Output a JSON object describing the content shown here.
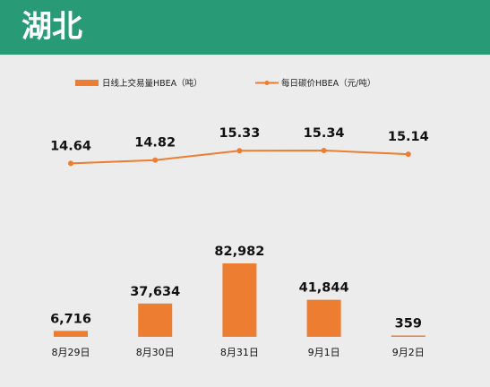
{
  "header": {
    "title": "湖北"
  },
  "chart_data": {
    "type": "bar+line",
    "categories": [
      "8月29日",
      "8月30日",
      "8月31日",
      "9月1日",
      "9月2日"
    ],
    "series": [
      {
        "name": "日线上交易量HBEA（吨）",
        "type": "bar",
        "values": [
          6716,
          37634,
          82982,
          41844,
          359
        ],
        "labels": [
          "6,716",
          "37,634",
          "82,982",
          "41,844",
          "359"
        ]
      },
      {
        "name": "每日碳价HBEA（元/吨）",
        "type": "line",
        "values": [
          14.64,
          14.82,
          15.33,
          15.34,
          15.14
        ],
        "labels": [
          "14.64",
          "14.82",
          "15.33",
          "15.34",
          "15.14"
        ]
      }
    ],
    "legend_position": "top",
    "grid": false
  },
  "colors": {
    "header": "#289b76",
    "series": "#ed7d31",
    "background": "#ececec"
  }
}
